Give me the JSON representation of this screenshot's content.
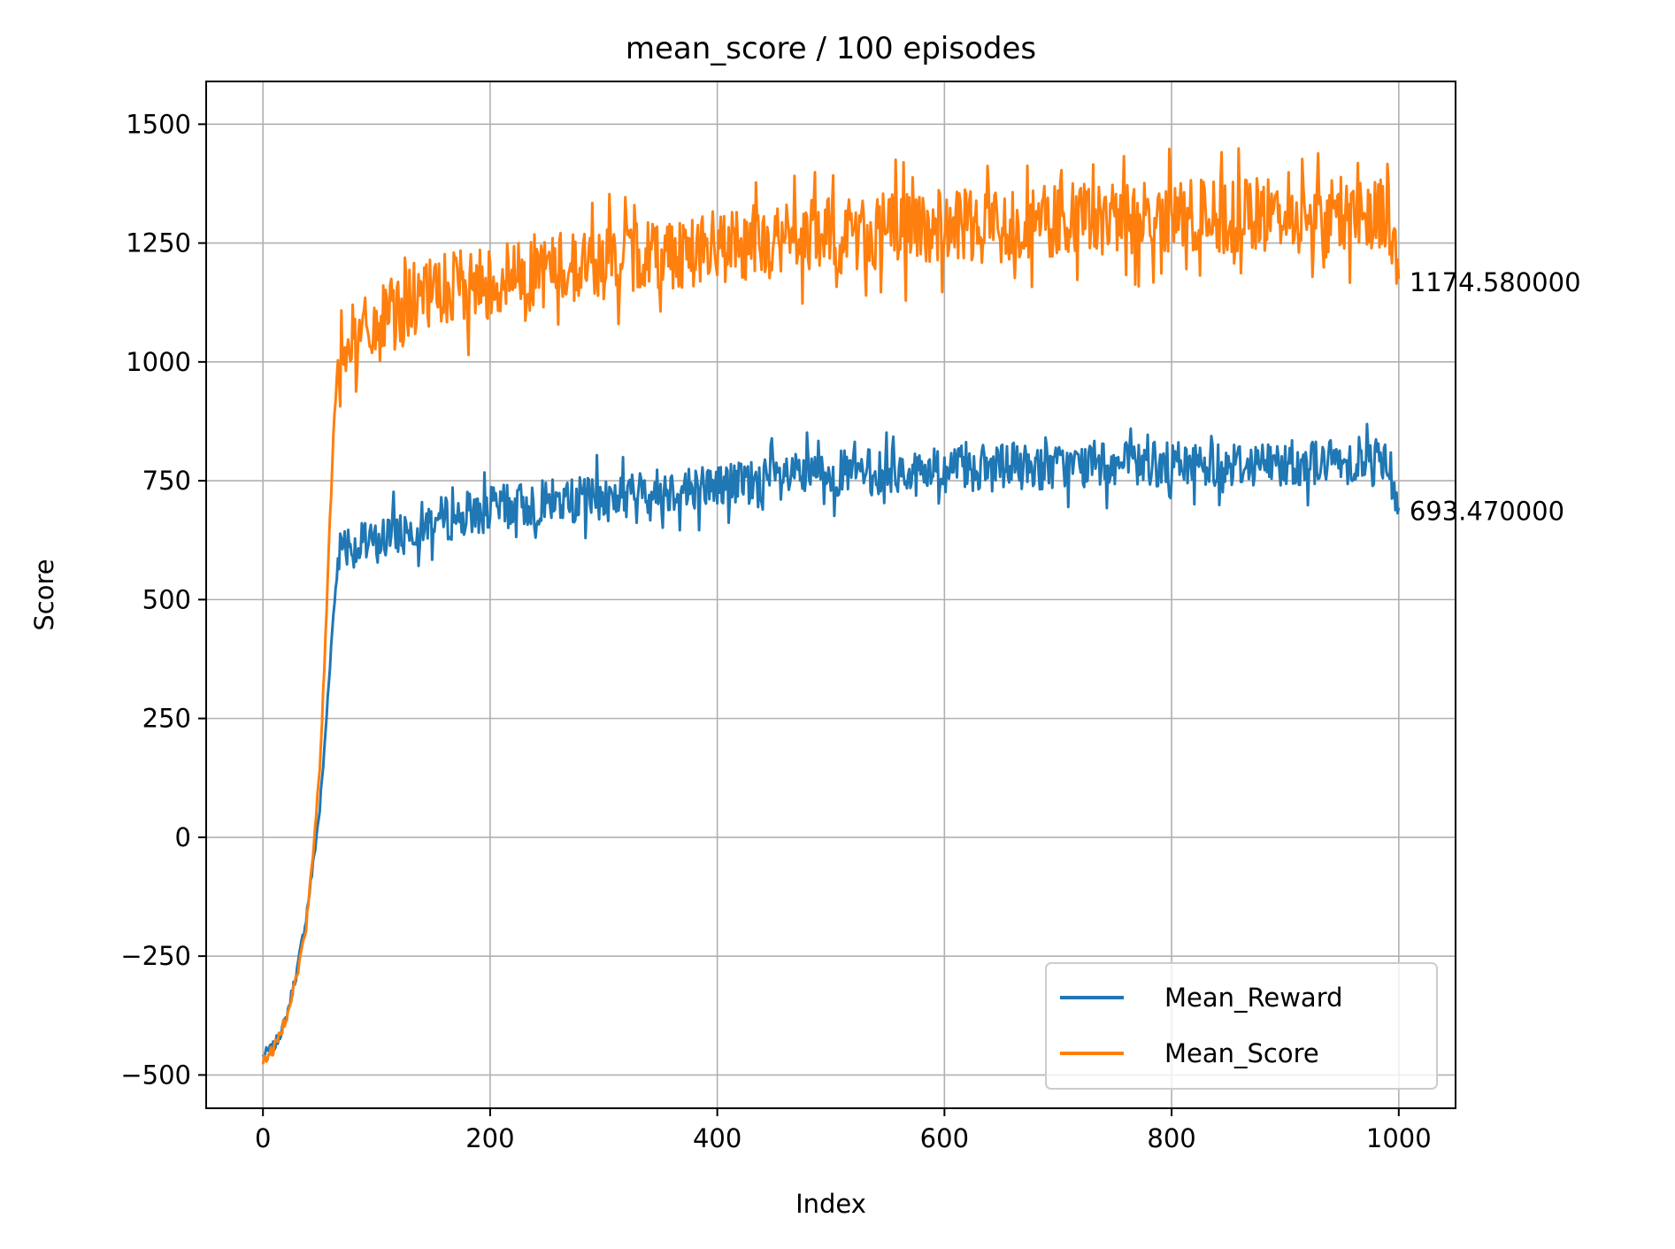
{
  "colors": {
    "mean_reward": "#1f77b4",
    "mean_score": "#ff7f0e",
    "grid": "#b0b0b0",
    "axes": "#000000",
    "background": "#ffffff"
  },
  "chart_data": {
    "type": "line",
    "title": "mean_score / 100 episodes",
    "xlabel": "Index",
    "ylabel": "Score",
    "xlim": [
      -50,
      1050
    ],
    "ylim": [
      -570,
      1590
    ],
    "grid": true,
    "legend_position": "lower-right",
    "xticks": [
      0,
      200,
      400,
      600,
      800,
      1000
    ],
    "xtick_labels": [
      "0",
      "200",
      "400",
      "600",
      "800",
      "1000"
    ],
    "yticks": [
      -500,
      -250,
      0,
      250,
      500,
      750,
      1000,
      1250,
      1500
    ],
    "ytick_labels": [
      "−500",
      "−250",
      "0",
      "250",
      "500",
      "750",
      "1000",
      "1250",
      "1500"
    ],
    "x_range": [
      0,
      1000
    ],
    "series": [
      {
        "name": "Mean_Reward",
        "color": "#1f77b4",
        "points": [
          [
            0,
            -460
          ],
          [
            10,
            -440
          ],
          [
            20,
            -385
          ],
          [
            30,
            -280
          ],
          [
            38,
            -170
          ],
          [
            44,
            -60
          ],
          [
            50,
            60
          ],
          [
            54,
            180
          ],
          [
            58,
            330
          ],
          [
            62,
            470
          ],
          [
            66,
            580
          ],
          [
            70,
            630
          ],
          [
            80,
            610
          ],
          [
            100,
            620
          ],
          [
            120,
            645
          ],
          [
            150,
            665
          ],
          [
            200,
            690
          ],
          [
            250,
            705
          ],
          [
            300,
            715
          ],
          [
            350,
            730
          ],
          [
            400,
            740
          ],
          [
            450,
            755
          ],
          [
            500,
            765
          ],
          [
            550,
            770
          ],
          [
            600,
            775
          ],
          [
            650,
            778
          ],
          [
            700,
            780
          ],
          [
            750,
            783
          ],
          [
            800,
            785
          ],
          [
            850,
            786
          ],
          [
            900,
            788
          ],
          [
            950,
            790
          ],
          [
            990,
            800
          ],
          [
            1000,
            693.47
          ]
        ],
        "end_label": "693.470000"
      },
      {
        "name": "Mean_Score",
        "color": "#ff7f0e",
        "points": [
          [
            0,
            -470
          ],
          [
            10,
            -445
          ],
          [
            20,
            -380
          ],
          [
            30,
            -290
          ],
          [
            38,
            -190
          ],
          [
            44,
            -40
          ],
          [
            50,
            150
          ],
          [
            54,
            350
          ],
          [
            58,
            600
          ],
          [
            62,
            850
          ],
          [
            66,
            1000
          ],
          [
            70,
            1060
          ],
          [
            80,
            1040
          ],
          [
            100,
            1070
          ],
          [
            120,
            1110
          ],
          [
            150,
            1140
          ],
          [
            200,
            1170
          ],
          [
            250,
            1195
          ],
          [
            300,
            1210
          ],
          [
            350,
            1230
          ],
          [
            400,
            1240
          ],
          [
            450,
            1255
          ],
          [
            500,
            1265
          ],
          [
            550,
            1275
          ],
          [
            600,
            1283
          ],
          [
            650,
            1290
          ],
          [
            700,
            1295
          ],
          [
            750,
            1300
          ],
          [
            800,
            1305
          ],
          [
            850,
            1305
          ],
          [
            900,
            1308
          ],
          [
            950,
            1310
          ],
          [
            990,
            1320
          ],
          [
            1000,
            1174.58
          ]
        ],
        "end_label": "1174.580000"
      }
    ]
  }
}
